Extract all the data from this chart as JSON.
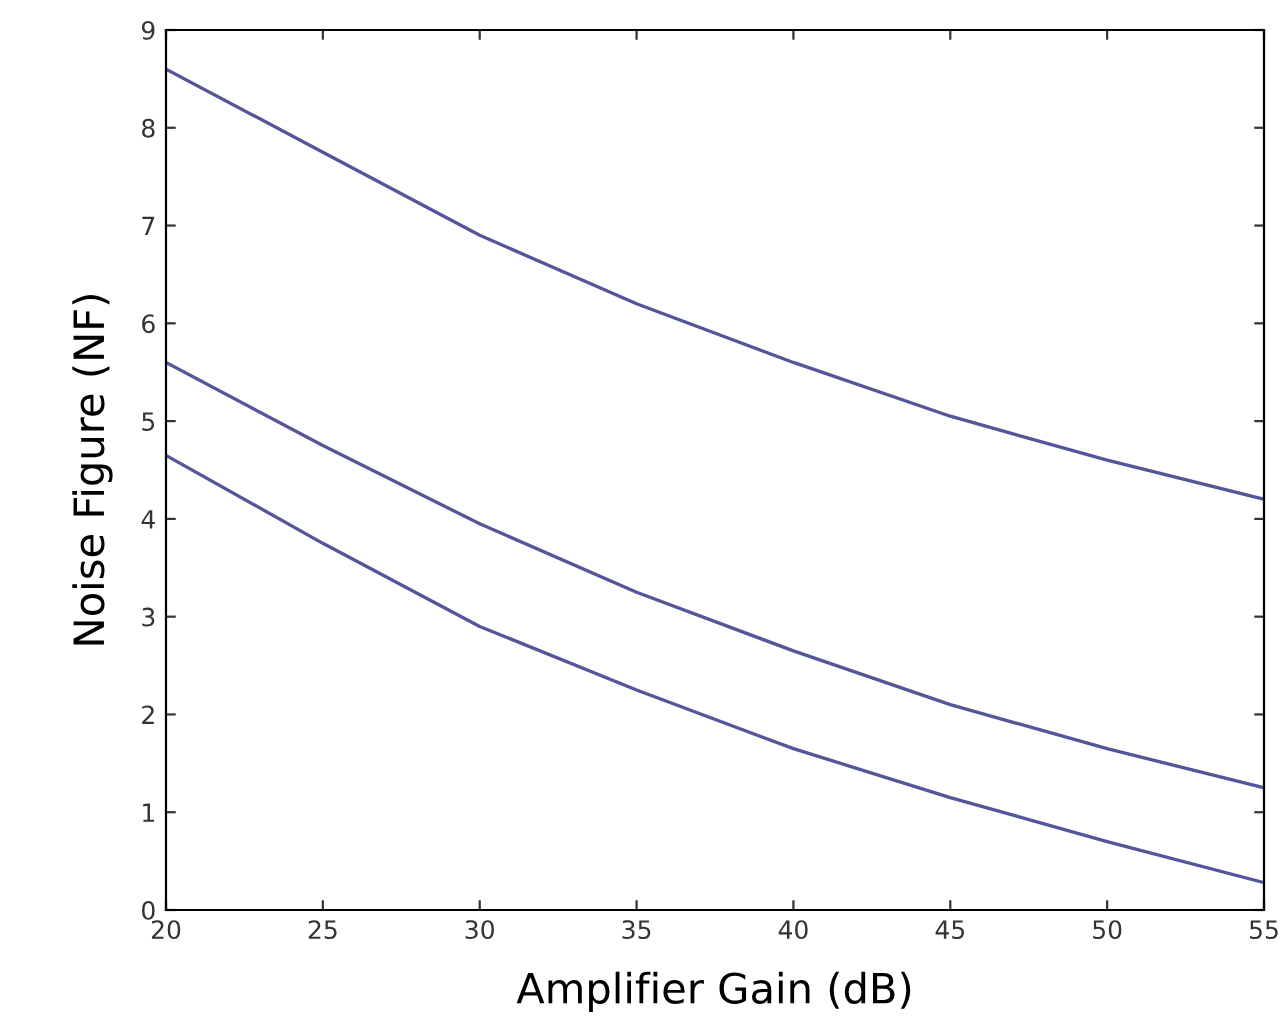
{
  "chart_data": {
    "type": "line",
    "xlabel": "Amplifier Gain (dB)",
    "ylabel": "Noise Figure (NF)",
    "x": [
      20,
      25,
      30,
      35,
      40,
      45,
      50,
      55
    ],
    "series": [
      {
        "color": "#55559a",
        "values": [
          8.6,
          7.75,
          6.9,
          6.2,
          5.6,
          5.05,
          4.6,
          4.2
        ]
      },
      {
        "color": "#55559a",
        "values": [
          5.6,
          4.75,
          3.95,
          3.25,
          2.65,
          2.1,
          1.65,
          1.25
        ]
      },
      {
        "color": "#55559a",
        "values": [
          4.65,
          3.75,
          2.9,
          2.25,
          1.65,
          1.15,
          0.7,
          0.28
        ]
      }
    ],
    "xlim": [
      20,
      55
    ],
    "ylim": [
      0,
      9
    ],
    "xticks": [
      20,
      25,
      30,
      35,
      40,
      45,
      50,
      55
    ],
    "yticks": [
      0,
      1,
      2,
      3,
      4,
      5,
      6,
      7,
      8,
      9
    ],
    "grid": false,
    "legend": false
  }
}
